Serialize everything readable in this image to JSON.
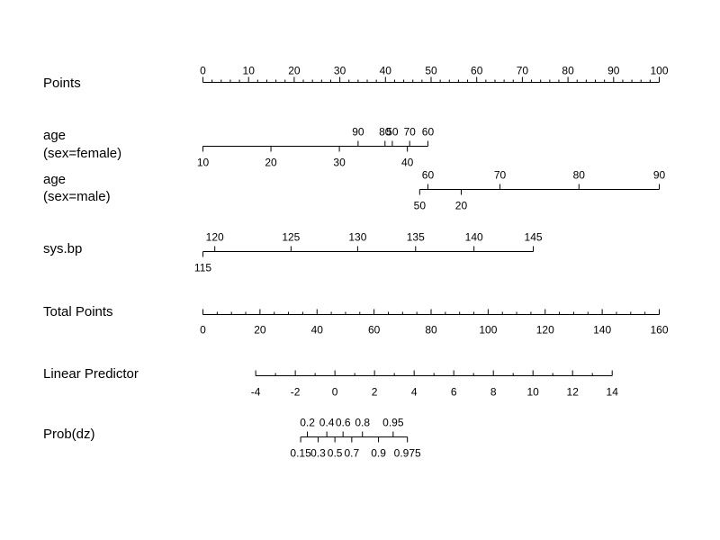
{
  "chart_data": {
    "type": "nomogram",
    "rows": [
      {
        "id": "points",
        "label_lines": [
          "Points"
        ],
        "min": 0,
        "max": 100,
        "labels": [
          0,
          10,
          20,
          30,
          40,
          50,
          60,
          70,
          80,
          90,
          100
        ],
        "minor_step": 2,
        "label_side": "above"
      },
      {
        "id": "age-female",
        "label_lines": [
          "age",
          "(sex=female)"
        ],
        "points_per_tick": [
          {
            "value": "10",
            "points": 0
          },
          {
            "value": "20",
            "points": 14.9
          },
          {
            "value": "30",
            "points": 29.9
          },
          {
            "value": "40",
            "points": 44.8
          },
          {
            "value": "60",
            "points": 49.3
          },
          {
            "value": "70",
            "points": 45.3
          },
          {
            "value": "50",
            "points": 41.5
          },
          {
            "value": "80",
            "points": 39.9
          },
          {
            "value": "90",
            "points": 34.0
          }
        ],
        "above": [
          "90",
          "80",
          "50",
          "70",
          "60"
        ],
        "below": [
          "10",
          "20",
          "30",
          "40"
        ]
      },
      {
        "id": "age-male",
        "label_lines": [
          "age",
          "(sex=male)"
        ],
        "points_per_tick": [
          {
            "value": "60",
            "points": 49.3
          },
          {
            "value": "70",
            "points": 65.1
          },
          {
            "value": "80",
            "points": 82.4
          },
          {
            "value": "90",
            "points": 100
          },
          {
            "value": "50",
            "points": 47.5
          },
          {
            "value": "20",
            "points": 56.6
          }
        ],
        "above": [
          "60",
          "70",
          "80",
          "90"
        ],
        "below": [
          "50",
          "20"
        ]
      },
      {
        "id": "sys-bp",
        "label_lines": [
          "sys.bp"
        ],
        "points_per_tick": [
          {
            "value": "120",
            "points": 2.6
          },
          {
            "value": "125",
            "points": 19.3
          },
          {
            "value": "130",
            "points": 33.9
          },
          {
            "value": "135",
            "points": 46.6
          },
          {
            "value": "140",
            "points": 59.4
          },
          {
            "value": "145",
            "points": 72.4
          },
          {
            "value": "115",
            "points": 0
          }
        ],
        "above": [
          "120",
          "125",
          "130",
          "135",
          "140",
          "145"
        ],
        "below": [
          "115"
        ]
      },
      {
        "id": "total-points",
        "label_lines": [
          "Total Points"
        ],
        "min": 0,
        "max": 160,
        "labels": [
          0,
          20,
          40,
          60,
          80,
          100,
          120,
          140,
          160
        ],
        "minor_step": 5,
        "label_side": "below"
      },
      {
        "id": "linear-predictor",
        "label_lines": [
          "Linear Predictor"
        ],
        "total_points_range": [
          18.5,
          143.5
        ],
        "min": -4,
        "max": 14,
        "labels": [
          -4,
          -2,
          0,
          2,
          4,
          6,
          8,
          10,
          12,
          14
        ],
        "minor_step": 1,
        "label_side": "below"
      },
      {
        "id": "prob-dz",
        "label_lines": [
          "Prob(dz)"
        ],
        "linear_predictor_at_ticks": [
          {
            "value": "0.15",
            "lp": -1.73
          },
          {
            "value": "0.2",
            "lp": -1.39
          },
          {
            "value": "0.3",
            "lp": -0.85
          },
          {
            "value": "0.4",
            "lp": -0.41
          },
          {
            "value": "0.5",
            "lp": 0
          },
          {
            "value": "0.6",
            "lp": 0.41
          },
          {
            "value": "0.7",
            "lp": 0.85
          },
          {
            "value": "0.8",
            "lp": 1.39
          },
          {
            "value": "0.9",
            "lp": 2.2
          },
          {
            "value": "0.95",
            "lp": 2.94
          },
          {
            "value": "0.975",
            "lp": 3.66
          }
        ],
        "above": [
          "0.2",
          "0.4",
          "0.6",
          "0.8",
          "0.95"
        ],
        "below": [
          "0.15",
          "0.3",
          "0.5",
          "0.7",
          "0.9",
          "0.975"
        ]
      }
    ]
  }
}
